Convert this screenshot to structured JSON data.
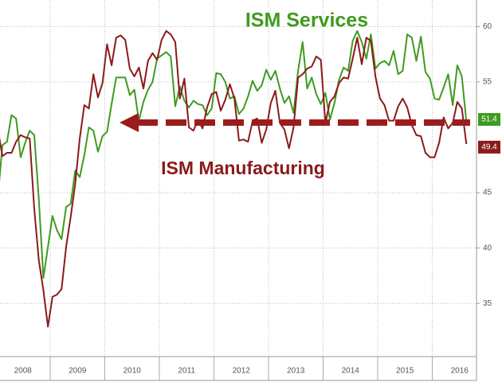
{
  "chart_data": {
    "type": "line",
    "annotations": [
      "ISM Services",
      "ISM Manufacturing"
    ],
    "categories": [
      null,
      null,
      null,
      null,
      null,
      null,
      "2008",
      null,
      null,
      null,
      null,
      null,
      null,
      null,
      null,
      null,
      null,
      null,
      "2009",
      null,
      null,
      null,
      null,
      null,
      null,
      null,
      null,
      null,
      null,
      null,
      "2010",
      null,
      null,
      null,
      null,
      null,
      null,
      null,
      null,
      null,
      null,
      null,
      "2011",
      null,
      null,
      null,
      null,
      null,
      null,
      null,
      null,
      null,
      null,
      null,
      "2012",
      null,
      null,
      null,
      null,
      null,
      null,
      null,
      null,
      null,
      null,
      null,
      "2013",
      null,
      null,
      null,
      null,
      null,
      null,
      null,
      null,
      null,
      null,
      null,
      "2014",
      null,
      null,
      null,
      null,
      null,
      null,
      null,
      null,
      null,
      null,
      null,
      "2015",
      null,
      null,
      null,
      null,
      null,
      null,
      null,
      null,
      null,
      null,
      null,
      "2016",
      null
    ],
    "series": [
      {
        "name": "ISM Services",
        "color": "#3f9b1f",
        "values": [
          44.6,
          49.3,
          49.6,
          52.0,
          51.7,
          48.2,
          49.5,
          50.6,
          50.2,
          44.4,
          37.3,
          40.1,
          42.9,
          41.6,
          40.8,
          43.7,
          44.0,
          47.0,
          46.4,
          48.4,
          50.9,
          50.6,
          48.7,
          50.1,
          50.5,
          53.0,
          55.4,
          55.4,
          55.4,
          53.8,
          54.3,
          51.5,
          53.2,
          54.3,
          55.0,
          57.1,
          57.4,
          57.7,
          57.3,
          52.8,
          54.6,
          53.3,
          52.7,
          53.3,
          53.0,
          52.9,
          52.0,
          52.6,
          55.8,
          55.7,
          55.0,
          53.5,
          53.7,
          52.1,
          52.6,
          53.7,
          55.1,
          54.2,
          54.7,
          56.1,
          55.2,
          56.0,
          54.4,
          53.1,
          53.7,
          52.2,
          56.0,
          58.6,
          54.4,
          55.4,
          53.9,
          53.0,
          54.0,
          51.6,
          53.1,
          55.2,
          56.3,
          56.0,
          58.7,
          59.6,
          58.6,
          57.1,
          59.3,
          56.2,
          56.7,
          56.9,
          56.5,
          57.8,
          55.7,
          56.0,
          59.3,
          59.0,
          56.9,
          59.1,
          55.9,
          55.3,
          53.5,
          53.4,
          54.5,
          55.7,
          52.9,
          56.5,
          55.5,
          51.4
        ]
      },
      {
        "name": "ISM Manufacturing",
        "color": "#8b1a1a",
        "values": [
          50.7,
          48.3,
          48.6,
          48.6,
          49.6,
          50.2,
          50.0,
          49.9,
          43.5,
          38.9,
          36.2,
          32.9,
          35.6,
          35.8,
          36.3,
          40.1,
          42.8,
          45.8,
          49.9,
          52.9,
          52.6,
          55.7,
          53.6,
          54.9,
          58.4,
          56.5,
          59.0,
          59.2,
          58.8,
          56.2,
          55.5,
          56.3,
          54.4,
          56.9,
          57.6,
          57.0,
          58.8,
          59.6,
          59.3,
          58.6,
          53.5,
          55.3,
          50.9,
          50.6,
          51.6,
          50.8,
          52.7,
          53.9,
          54.1,
          52.4,
          53.4,
          54.8,
          53.5,
          49.7,
          49.8,
          49.6,
          51.5,
          51.7,
          49.5,
          50.7,
          53.1,
          54.2,
          51.3,
          50.7,
          49.0,
          50.9,
          55.4,
          55.7,
          56.2,
          56.4,
          57.3,
          57.0,
          51.3,
          53.2,
          53.7,
          54.9,
          55.4,
          55.3,
          57.1,
          59.0,
          56.6,
          59.0,
          58.7,
          55.5,
          53.5,
          52.9,
          51.5,
          51.5,
          52.8,
          53.5,
          52.7,
          51.1,
          50.2,
          50.1,
          48.6,
          48.2,
          48.2,
          49.5,
          51.8,
          50.8,
          51.3,
          53.2,
          52.6,
          49.4
        ]
      }
    ],
    "ylim": [
      30.2,
      62.4
    ],
    "yticks": [
      35,
      40,
      45,
      55,
      60
    ],
    "grid": true
  }
}
